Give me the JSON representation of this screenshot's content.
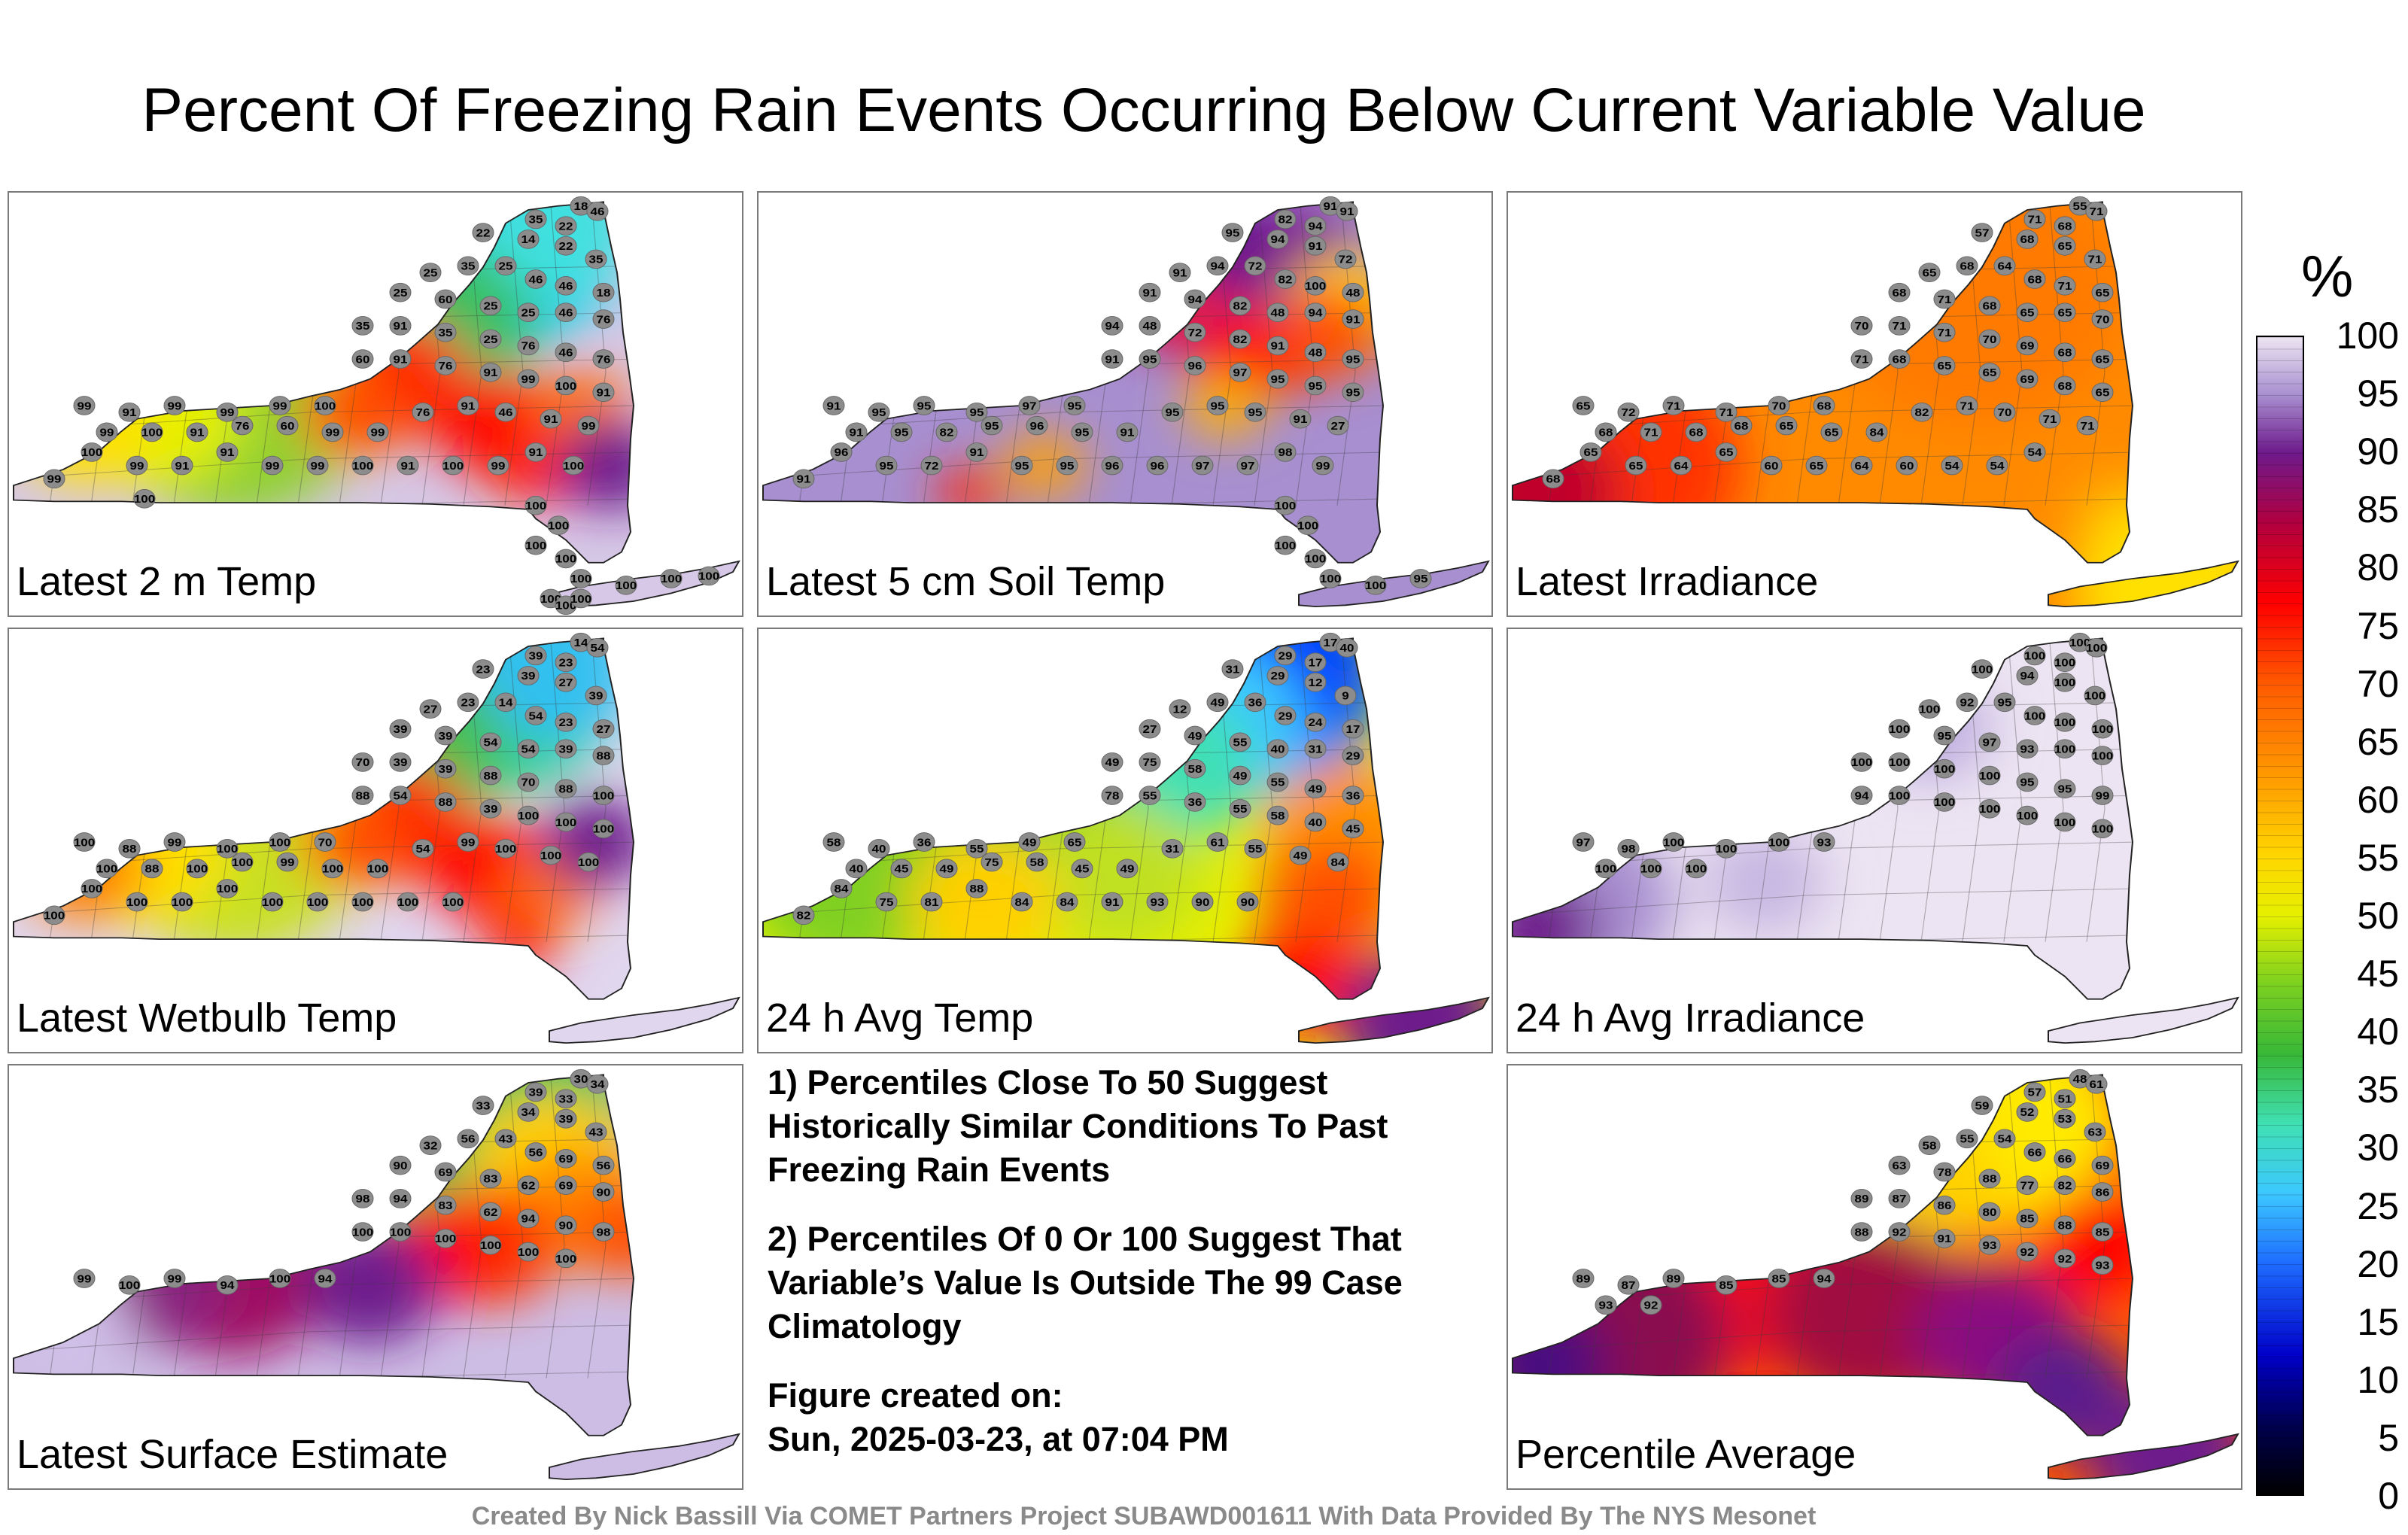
{
  "title": "Percent Of Freezing Rain Events Occurring Below Current Variable Value",
  "panels": [
    {
      "label": "Latest 2 m Temp",
      "scheme": "temp2m",
      "stations": [
        "35",
        "22",
        "18",
        "46",
        "22",
        "14",
        "22",
        "35",
        "25",
        "35",
        "25",
        "46",
        "46",
        "18",
        "25",
        "60",
        "25",
        "25",
        "46",
        "76",
        "35",
        "91",
        "35",
        "25",
        "76",
        "46",
        "76",
        "99",
        "91",
        "99",
        "99",
        "99",
        "100",
        "60",
        "91",
        "76",
        "91",
        "99",
        "100",
        "91",
        "99",
        "100",
        "91",
        "76",
        "60",
        "99",
        "99",
        "76",
        "91",
        "46",
        "91",
        "99",
        "99",
        "100",
        "99",
        "91",
        "91",
        "99",
        "99",
        "100",
        "91",
        "100",
        "99",
        "91",
        "100",
        "100",
        "100",
        "100",
        "100",
        "100",
        "100",
        "100",
        "100",
        "100",
        "100",
        "100",
        "100"
      ]
    },
    {
      "label": "Latest 5 cm Soil Temp",
      "scheme": "soil",
      "stations": [
        "82",
        "94",
        "91",
        "91",
        "95",
        "94",
        "91",
        "72",
        "91",
        "94",
        "72",
        "82",
        "100",
        "48",
        "91",
        "94",
        "82",
        "48",
        "94",
        "91",
        "94",
        "48",
        "72",
        "82",
        "91",
        "48",
        "95",
        "91",
        "95",
        "95",
        "95",
        "97",
        "95",
        "91",
        "95",
        "96",
        "97",
        "95",
        "95",
        "95",
        "91",
        "95",
        "82",
        "95",
        "96",
        "95",
        "91",
        "95",
        "95",
        "95",
        "91",
        "27",
        "91",
        "96",
        "95",
        "72",
        "91",
        "95",
        "95",
        "96",
        "96",
        "97",
        "97",
        "98",
        "99",
        "100",
        "100",
        "100",
        "100",
        "100",
        "100",
        "95"
      ]
    },
    {
      "label": "Latest Irradiance",
      "scheme": "irr",
      "stations": [
        "71",
        "68",
        "55",
        "71",
        "57",
        "68",
        "65",
        "71",
        "65",
        "68",
        "64",
        "68",
        "71",
        "65",
        "68",
        "71",
        "68",
        "65",
        "65",
        "70",
        "70",
        "71",
        "71",
        "70",
        "69",
        "68",
        "65",
        "65",
        "72",
        "71",
        "71",
        "70",
        "68",
        "71",
        "68",
        "65",
        "65",
        "69",
        "68",
        "65",
        "68",
        "71",
        "68",
        "68",
        "65",
        "65",
        "84",
        "82",
        "71",
        "70",
        "71",
        "71",
        "68",
        "65",
        "65",
        "64",
        "65",
        "60",
        "65",
        "64",
        "60",
        "54",
        "54",
        "54"
      ]
    },
    {
      "label": "Latest Wetbulb Temp",
      "scheme": "wb",
      "stations": [
        "39",
        "23",
        "14",
        "54",
        "23",
        "39",
        "27",
        "39",
        "27",
        "23",
        "14",
        "54",
        "23",
        "27",
        "39",
        "39",
        "54",
        "54",
        "39",
        "88",
        "70",
        "39",
        "39",
        "88",
        "70",
        "88",
        "100",
        "100",
        "88",
        "99",
        "100",
        "100",
        "70",
        "88",
        "54",
        "88",
        "39",
        "100",
        "100",
        "100",
        "100",
        "88",
        "100",
        "100",
        "99",
        "100",
        "100",
        "54",
        "99",
        "100",
        "100",
        "100",
        "100",
        "100",
        "100",
        "100",
        "100",
        "100",
        "100",
        "100",
        "100",
        "100"
      ]
    },
    {
      "label": "24 h Avg Temp",
      "scheme": "avg",
      "stations": [
        "29",
        "17",
        "17",
        "40",
        "31",
        "29",
        "12",
        "9",
        "12",
        "49",
        "36",
        "29",
        "24",
        "17",
        "27",
        "49",
        "55",
        "40",
        "31",
        "29",
        "49",
        "75",
        "58",
        "49",
        "55",
        "49",
        "36",
        "58",
        "40",
        "36",
        "55",
        "49",
        "65",
        "78",
        "55",
        "36",
        "55",
        "58",
        "40",
        "45",
        "40",
        "45",
        "49",
        "75",
        "58",
        "45",
        "49",
        "31",
        "61",
        "55",
        "49",
        "84",
        "82",
        "84",
        "75",
        "81",
        "88",
        "84",
        "84",
        "91",
        "93",
        "90",
        "90"
      ]
    },
    {
      "label": "24 h Avg Irradiance",
      "scheme": "avgirr",
      "stations": [
        "100",
        "100",
        "100",
        "100",
        "100",
        "94",
        "100",
        "100",
        "100",
        "92",
        "95",
        "100",
        "100",
        "100",
        "100",
        "95",
        "97",
        "93",
        "100",
        "100",
        "100",
        "100",
        "100",
        "100",
        "95",
        "95",
        "99",
        "97",
        "98",
        "100",
        "100",
        "100",
        "93",
        "94",
        "100",
        "100",
        "100",
        "100",
        "100",
        "100",
        "100",
        "100",
        "100"
      ]
    },
    {
      "label": "Latest Surface Estimate",
      "scheme": "sfc",
      "stations": [
        "39",
        "33",
        "30",
        "34",
        "33",
        "34",
        "39",
        "43",
        "32",
        "56",
        "43",
        "56",
        "69",
        "56",
        "90",
        "69",
        "83",
        "62",
        "69",
        "90",
        "98",
        "94",
        "83",
        "62",
        "94",
        "90",
        "98",
        "99",
        "100",
        "99",
        "94",
        "100",
        "94",
        "100",
        "100",
        "100",
        "100",
        "100",
        "100"
      ]
    },
    {
      "label": "Percentile Average",
      "scheme": "pavg",
      "stations": [
        "57",
        "51",
        "48",
        "61",
        "59",
        "52",
        "53",
        "63",
        "58",
        "55",
        "54",
        "66",
        "66",
        "69",
        "63",
        "78",
        "88",
        "77",
        "82",
        "86",
        "89",
        "87",
        "86",
        "80",
        "85",
        "88",
        "85",
        "89",
        "87",
        "89",
        "85",
        "85",
        "94",
        "88",
        "92",
        "91",
        "93",
        "92",
        "92",
        "93",
        "93",
        "92"
      ]
    }
  ],
  "notes": {
    "note1": "1) Percentiles Close To 50 Suggest Historically Similar Conditions To Past Freezing Rain Events",
    "note2": "2) Percentiles Of 0 Or 100 Suggest That Variable’s Value Is Outside The 99 Case Climatology",
    "created_label": "Figure created on:",
    "created_time": "Sun, 2025-03-23, at 07:04 PM"
  },
  "colorbar": {
    "unit": "%",
    "ticks": [
      "100",
      "95",
      "90",
      "85",
      "80",
      "75",
      "70",
      "65",
      "60",
      "55",
      "50",
      "45",
      "40",
      "35",
      "30",
      "25",
      "20",
      "15",
      "10",
      "5",
      "0"
    ],
    "stops": [
      {
        "v": 0,
        "c": "#000000"
      },
      {
        "v": 6,
        "c": "#000050"
      },
      {
        "v": 12,
        "c": "#0000c8"
      },
      {
        "v": 20,
        "c": "#1e6cff"
      },
      {
        "v": 26,
        "c": "#3cc8ff"
      },
      {
        "v": 32,
        "c": "#40e0b4"
      },
      {
        "v": 38,
        "c": "#38b838"
      },
      {
        "v": 44,
        "c": "#7ad020"
      },
      {
        "v": 50,
        "c": "#e6f000"
      },
      {
        "v": 55,
        "c": "#ffd700"
      },
      {
        "v": 62,
        "c": "#ff9a00"
      },
      {
        "v": 70,
        "c": "#ff5a00"
      },
      {
        "v": 77,
        "c": "#ff0000"
      },
      {
        "v": 84,
        "c": "#b00040"
      },
      {
        "v": 90,
        "c": "#6e1a8c"
      },
      {
        "v": 95,
        "c": "#a88fd0"
      },
      {
        "v": 100,
        "c": "#ece4f2"
      }
    ]
  },
  "credit": "Created By Nick Bassill Via COMET Partners Project SUBAWD001611 With Data Provided By The NYS Mesonet"
}
